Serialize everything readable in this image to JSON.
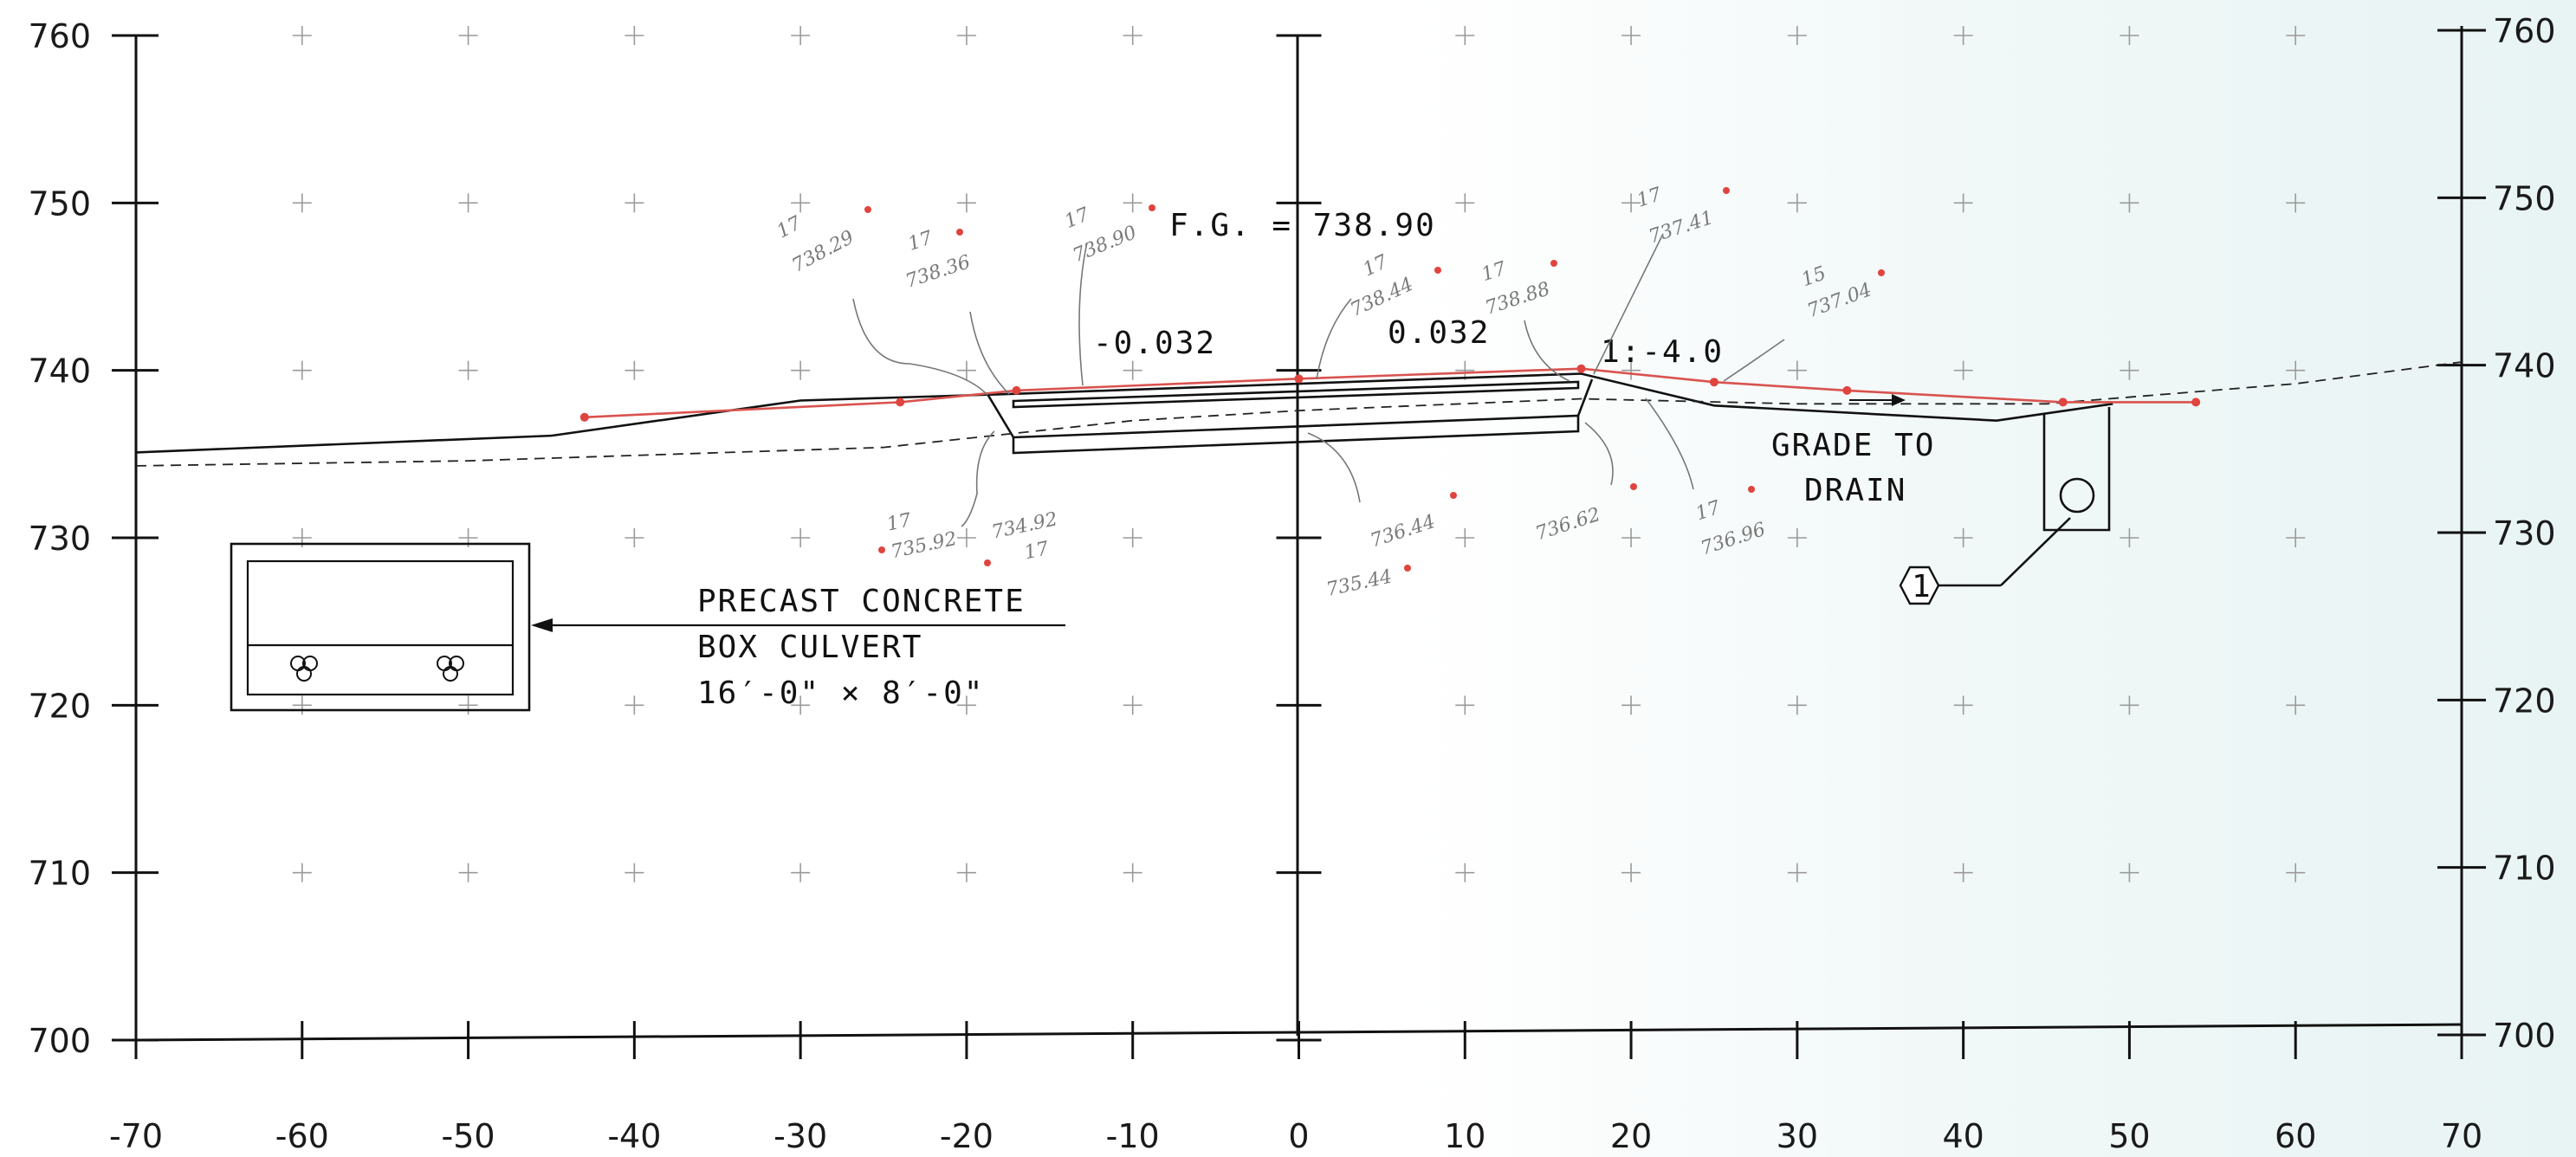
{
  "chart_data": {
    "type": "line",
    "title": "",
    "xlabel": "",
    "ylabel": "",
    "xlim": [
      -70,
      70
    ],
    "ylim": [
      700,
      760
    ],
    "x_ticks": [
      -70,
      -60,
      -50,
      -40,
      -30,
      -20,
      -10,
      0,
      10,
      20,
      30,
      40,
      50,
      60,
      70
    ],
    "x_tick_labels": [
      "-70",
      "-60",
      "-50",
      "-40",
      "-30",
      "-20",
      "-10",
      "0",
      "10",
      "20",
      "30",
      "40",
      "50",
      "60",
      "70"
    ],
    "y_ticks": [
      700,
      710,
      720,
      730,
      740,
      750,
      760
    ],
    "y_tick_labels_left": [
      "700",
      "710",
      "720",
      "730",
      "740",
      "750",
      "760"
    ],
    "y_tick_labels_right": [
      "700",
      "710",
      "720",
      "730",
      "740",
      "750",
      "760"
    ],
    "grid": true,
    "series": [
      {
        "role": "proposed-grade",
        "color": "#111111",
        "x": [
          -70,
          -45,
          -30,
          -17,
          0,
          17,
          25,
          42,
          49
        ],
        "y": [
          735.1,
          736.1,
          738.2,
          738.6,
          739.2,
          739.8,
          737.9,
          737.0,
          738.0
        ]
      },
      {
        "role": "existing-ground",
        "color": "#222222",
        "x": [
          -70,
          -50,
          -25,
          -10,
          0,
          17,
          30,
          45,
          60,
          70
        ],
        "y": [
          734.3,
          734.6,
          735.4,
          737.0,
          737.6,
          738.3,
          738.0,
          738.0,
          739.2,
          740.5
        ]
      },
      {
        "role": "field-markup",
        "color": "#d9534f",
        "x": [
          -43,
          -24,
          -17,
          0,
          17,
          25,
          33,
          46,
          54
        ],
        "y": [
          737.2,
          738.1,
          738.8,
          739.5,
          740.1,
          739.3,
          738.8,
          738.1,
          738.1
        ]
      }
    ]
  },
  "annotations": {
    "fg_label": "F.G. = 738.90",
    "slope_left": "-0.032",
    "slope_right": "0.032",
    "side_slope": "1:-4.0",
    "grade_line1": "GRADE TO",
    "grade_line2": "DRAIN",
    "culvert_line1": "PRECAST CONCRETE",
    "culvert_line2": "BOX CULVERT",
    "culvert_line3": "16′-0\" × 8′-0\"",
    "callout_number": "1"
  },
  "handwritten": {
    "n1": "17",
    "v1": "738.29",
    "n2": "17",
    "v2": "738.36",
    "n3": "17",
    "v3": "738.90",
    "n4": "17",
    "v4": "738.44",
    "n5": "17",
    "v5": "738.88",
    "n6": "17",
    "v6": "737.41",
    "n7": "15",
    "v7": "737.04",
    "n8": "17",
    "v8": "735.92",
    "n9": "17",
    "v9": "734.92",
    "v10": "736.44",
    "v11": "735.44",
    "v12": "736.62",
    "n13": "17",
    "v13": "736.96"
  },
  "colors": {
    "ink": "#111111",
    "markup": "#d9534f",
    "grid": "#9a9a9a"
  }
}
